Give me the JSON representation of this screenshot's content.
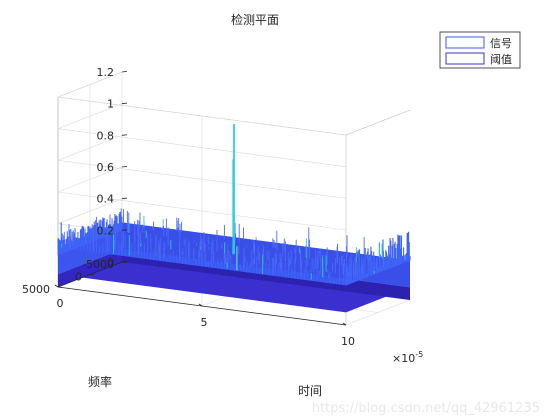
{
  "chart_data": {
    "type": "surface",
    "title": "检测平面",
    "xlabel": "时间",
    "ylabel": "频率",
    "zlabel": "",
    "x_exponent_label": "×10",
    "x_exponent_power": "-5",
    "xlim": [
      0,
      10
    ],
    "ylim": [
      -5000,
      5000
    ],
    "zlim": [
      0,
      1.2
    ],
    "x_ticks": [
      "0",
      "5",
      "10"
    ],
    "y_ticks": [
      "5000",
      "0",
      "-5000"
    ],
    "z_ticks": [
      "0",
      "0.2",
      "0.4",
      "0.6",
      "0.8",
      "1",
      "1.2"
    ],
    "grid": true,
    "legend_position": "top-right",
    "legend": [
      "信号",
      "阈值"
    ],
    "series": [
      {
        "name": "信号",
        "noise_floor": 0.25,
        "noise_max": 0.5,
        "peak_x": 5,
        "peak_y": 0,
        "peak_value": 1.07,
        "color": "#3a5df5"
      },
      {
        "name": "阈值",
        "level": 0.08,
        "color": "#3b2fd0"
      }
    ],
    "watermark": "https://blog.csdn.net/qq_42961235"
  }
}
